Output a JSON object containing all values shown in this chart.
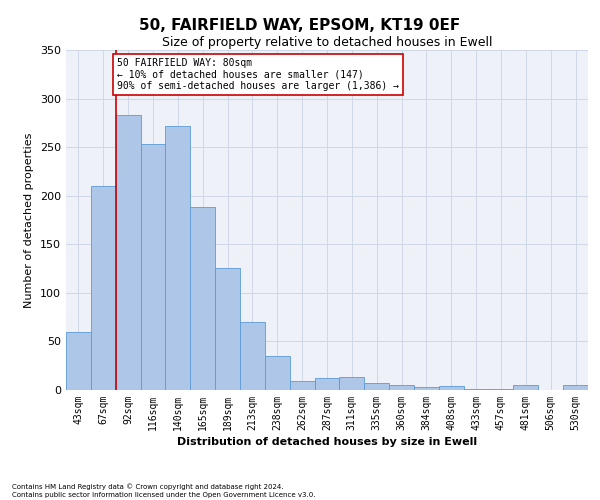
{
  "title": "50, FAIRFIELD WAY, EPSOM, KT19 0EF",
  "subtitle": "Size of property relative to detached houses in Ewell",
  "xlabel": "Distribution of detached houses by size in Ewell",
  "ylabel": "Number of detached properties",
  "categories": [
    "43sqm",
    "67sqm",
    "92sqm",
    "116sqm",
    "140sqm",
    "165sqm",
    "189sqm",
    "213sqm",
    "238sqm",
    "262sqm",
    "287sqm",
    "311sqm",
    "335sqm",
    "360sqm",
    "384sqm",
    "408sqm",
    "433sqm",
    "457sqm",
    "481sqm",
    "506sqm",
    "530sqm"
  ],
  "values": [
    60,
    210,
    283,
    253,
    272,
    188,
    126,
    70,
    35,
    9,
    12,
    13,
    7,
    5,
    3,
    4,
    1,
    1,
    5,
    0,
    5
  ],
  "bar_color": "#aec6e8",
  "bar_edge_color": "#5b9bd5",
  "grid_color": "#d0d8e8",
  "bg_color": "#eef2f8",
  "vline_color": "#cc0000",
  "annotation_line1": "50 FAIRFIELD WAY: 80sqm",
  "annotation_line2": "← 10% of detached houses are smaller (147)",
  "annotation_line3": "90% of semi-detached houses are larger (1,386) →",
  "annotation_box_color": "#cc0000",
  "ylim": [
    0,
    350
  ],
  "yticks": [
    0,
    50,
    100,
    150,
    200,
    250,
    300,
    350
  ],
  "footer": "Contains HM Land Registry data © Crown copyright and database right 2024.\nContains public sector information licensed under the Open Government Licence v3.0.",
  "title_fontsize": 11,
  "subtitle_fontsize": 9,
  "xlabel_fontsize": 8,
  "ylabel_fontsize": 8,
  "tick_fontsize": 7,
  "annotation_fontsize": 7
}
